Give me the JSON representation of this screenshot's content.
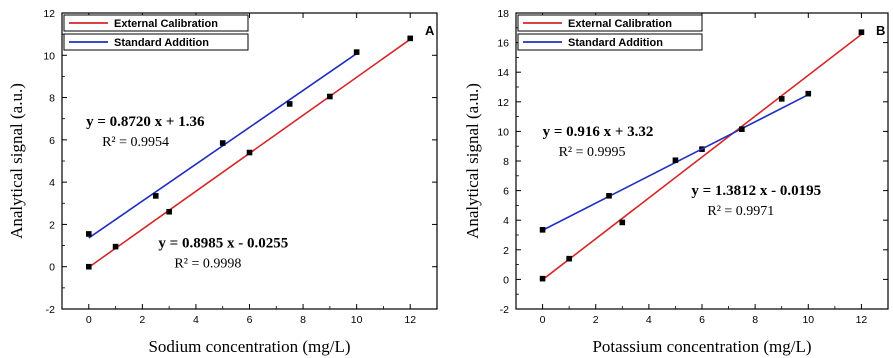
{
  "chart_data": [
    {
      "type": "line",
      "panel_label": "A",
      "xlabel": "Sodium concentration (mg/L)",
      "ylabel": "Analytical signal (a.u.)",
      "xlim": [
        -1,
        13
      ],
      "ylim": [
        -2,
        12
      ],
      "xticks": [
        0,
        2,
        4,
        6,
        8,
        10,
        12
      ],
      "yticks": [
        -2,
        0,
        2,
        4,
        6,
        8,
        10,
        12
      ],
      "legend_position": "top-left",
      "series": [
        {
          "name": "External Calibration",
          "color": "#d62728",
          "fit": {
            "slope": 0.8985,
            "intercept": -0.0255
          },
          "points": [
            [
              0,
              0.0
            ],
            [
              1,
              0.95
            ],
            [
              3,
              2.6
            ],
            [
              6,
              5.4
            ],
            [
              9,
              8.05
            ],
            [
              12,
              10.8
            ]
          ]
        },
        {
          "name": "Standard Addition",
          "color": "#1f2fbf",
          "fit": {
            "slope": 0.872,
            "intercept": 1.36
          },
          "points": [
            [
              0,
              1.55
            ],
            [
              2.5,
              3.35
            ],
            [
              5,
              5.85
            ],
            [
              7.5,
              7.7
            ],
            [
              10,
              10.15
            ]
          ]
        }
      ],
      "annotations": [
        {
          "text": "y = 0.8720 x + 1.36",
          "sub": "R² = 0.9954",
          "at": [
            -0.1,
            6.65
          ]
        },
        {
          "text": "y = 0.8985 x - 0.0255",
          "sub": "R² = 0.9998",
          "at": [
            2.6,
            0.9
          ]
        }
      ]
    },
    {
      "type": "line",
      "panel_label": "B",
      "xlabel": "Potassium concentration (mg/L)",
      "ylabel": "Analytical signal (a.u.)",
      "xlim": [
        -1,
        13
      ],
      "ylim": [
        -2,
        18
      ],
      "xticks": [
        0,
        2,
        4,
        6,
        8,
        10,
        12
      ],
      "yticks": [
        -2,
        0,
        2,
        4,
        6,
        8,
        10,
        12,
        14,
        16,
        18
      ],
      "legend_position": "top-left",
      "series": [
        {
          "name": "External Calibration",
          "color": "#d62728",
          "fit": {
            "slope": 1.3812,
            "intercept": -0.0195
          },
          "points": [
            [
              0,
              0.05
            ],
            [
              1,
              1.4
            ],
            [
              3,
              3.85
            ],
            [
              6,
              8.8
            ],
            [
              9,
              12.2
            ],
            [
              12,
              16.7
            ]
          ]
        },
        {
          "name": "Standard Addition",
          "color": "#1f2fbf",
          "fit": {
            "slope": 0.916,
            "intercept": 3.32
          },
          "points": [
            [
              0,
              3.35
            ],
            [
              2.5,
              5.65
            ],
            [
              5,
              8.05
            ],
            [
              7.5,
              10.15
            ],
            [
              10,
              12.55
            ]
          ]
        }
      ],
      "annotations": [
        {
          "text": "y = 0.916 x + 3.32",
          "sub": "R² = 0.9995",
          "at": [
            0.0,
            9.7
          ]
        },
        {
          "text": "y = 1.3812 x - 0.0195",
          "sub": "R² = 0.9971",
          "at": [
            5.6,
            5.7
          ]
        }
      ]
    }
  ]
}
